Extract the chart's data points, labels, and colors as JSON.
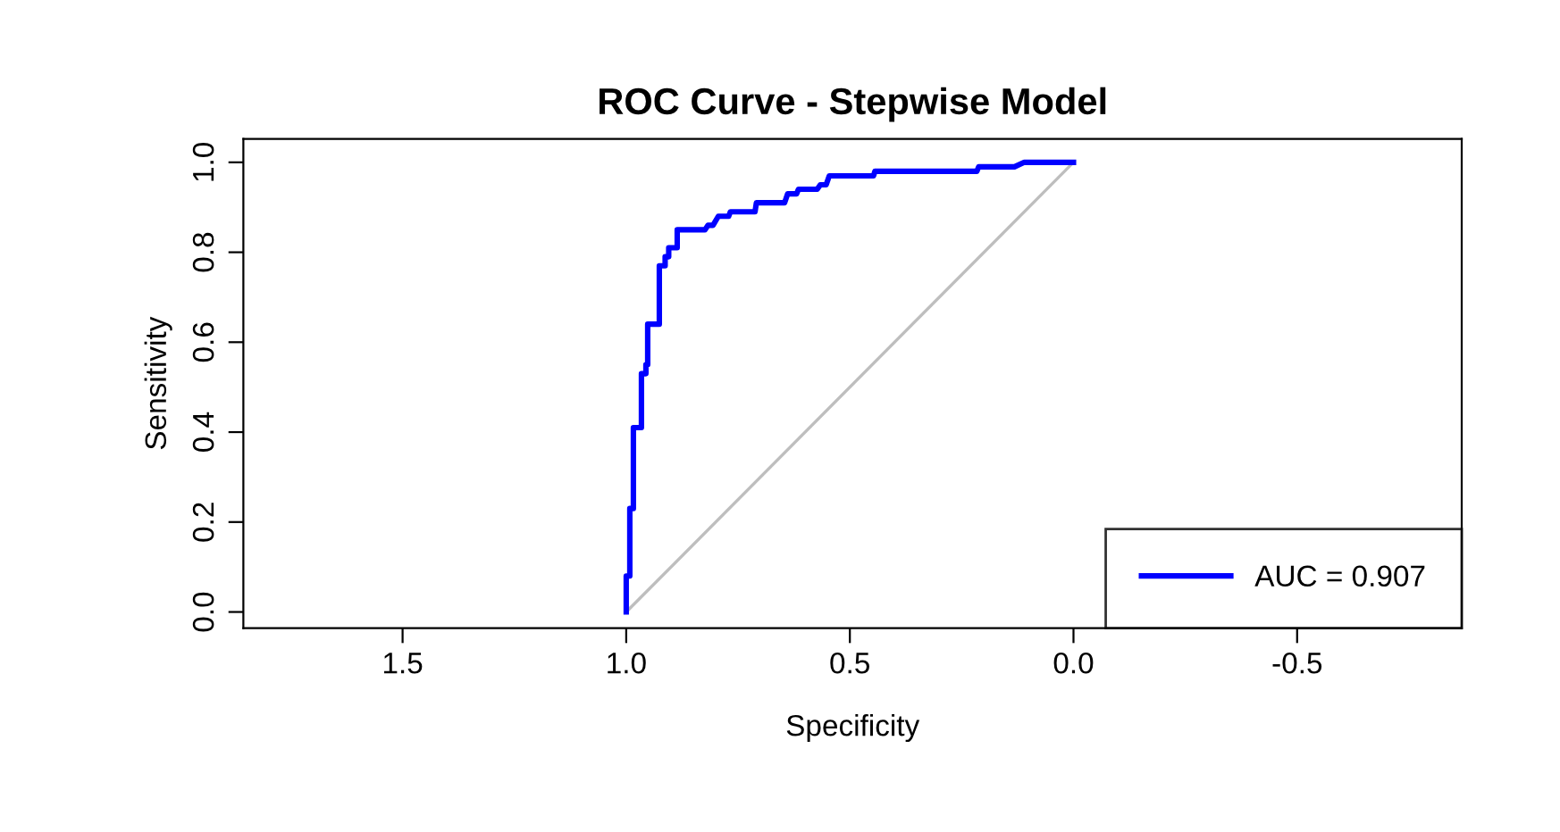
{
  "chart_data": {
    "type": "line",
    "title": "ROC Curve - Stepwise Model",
    "xlabel": "Specificity",
    "ylabel": "Sensitivity",
    "xlim": [
      1.856,
      -0.868
    ],
    "ylim": [
      -0.036,
      1.052
    ],
    "xticks": [
      1.5,
      {
        "value": 1.0,
        "label": "1.0"
      },
      0.5,
      {
        "value": 0.0,
        "label": "0.0"
      },
      -0.5
    ],
    "yticks": [
      {
        "value": 0.0,
        "label": "0.0"
      },
      0.2,
      0.4,
      0.6,
      0.8,
      {
        "value": 1.0,
        "label": "1.0"
      }
    ],
    "grid": false,
    "legend": "bottom right",
    "series": [
      {
        "name": "AUC = 0.907",
        "color": "#0000ff",
        "x": [
          1.0,
          1.0,
          0.992,
          0.992,
          0.984,
          0.984,
          0.966,
          0.966,
          0.956,
          0.956,
          0.952,
          0.952,
          0.926,
          0.926,
          0.913,
          0.913,
          0.905,
          0.905,
          0.886,
          0.886,
          0.824,
          0.817,
          0.806,
          0.794,
          0.771,
          0.767,
          0.712,
          0.709,
          0.646,
          0.639,
          0.619,
          0.615,
          0.573,
          0.566,
          0.553,
          0.546,
          0.447,
          0.444,
          0.216,
          0.212,
          0.132,
          0.11,
          0.0
        ],
        "values": [
          0.0,
          0.08,
          0.08,
          0.23,
          0.23,
          0.41,
          0.41,
          0.53,
          0.53,
          0.55,
          0.55,
          0.64,
          0.64,
          0.77,
          0.77,
          0.79,
          0.79,
          0.81,
          0.81,
          0.85,
          0.85,
          0.86,
          0.86,
          0.88,
          0.88,
          0.89,
          0.89,
          0.91,
          0.91,
          0.93,
          0.93,
          0.94,
          0.94,
          0.95,
          0.95,
          0.97,
          0.97,
          0.98,
          0.98,
          0.99,
          0.99,
          1.0,
          1.0
        ]
      },
      {
        "color": "#bebebe",
        "x": [
          1.0,
          0.0
        ],
        "values": [
          0.0,
          1.0
        ]
      }
    ]
  }
}
